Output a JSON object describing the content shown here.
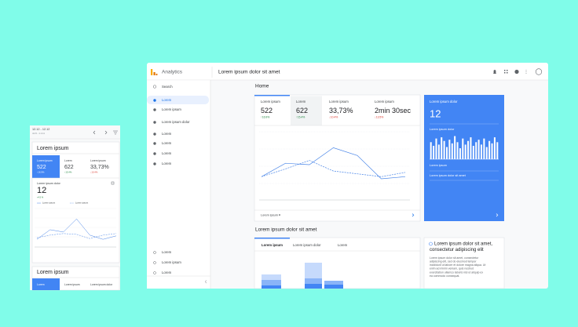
{
  "mobile": {
    "date_range": "12.12 - 12.12",
    "date_sub": "Jul 6 - 1.1.11",
    "title": "Lorem ipsum",
    "metrics": [
      {
        "label": "Lorem ipsum",
        "value": "522",
        "change": "↑16.9%"
      },
      {
        "label": "Lorem",
        "value": "622",
        "change": "↑15.4%"
      },
      {
        "label": "Lorem ipsum",
        "value": "33,73%",
        "change": "↓10.4%"
      }
    ],
    "stat_label": "Lorem ipsum dolor",
    "stat_value": "12",
    "stat_change": "+4.5 %",
    "legend": [
      "Lorem ipsum",
      "Lorem ipsum"
    ],
    "chart": {
      "type": "line",
      "ylim": [
        0,
        100
      ],
      "series": [
        {
          "color": "#4a86e8",
          "style": "solid",
          "values": [
            20,
            45,
            39,
            73,
            31,
            20,
            29
          ]
        },
        {
          "color": "#4a86e8",
          "style": "dashed",
          "values": [
            24,
            31,
            35,
            33,
            22,
            31,
            35
          ]
        }
      ]
    },
    "card2_title": "Lorem ipsum",
    "tabs": [
      "Lorem",
      "Lorem ipsum",
      "Lorem ipsum dolor"
    ]
  },
  "desktop": {
    "app_name": "Analytics",
    "page_title": "Lorem ipsum dolor sit amet",
    "search": "Search",
    "nav": [
      "Lorem",
      "Lorem ipsum",
      "Lorem ipsum dolor",
      "Lorem",
      "Lorem",
      "Lorem",
      "Lorem"
    ],
    "nav_bottom": [
      "Lorem",
      "Lorem ipsum",
      "Lorem"
    ],
    "home": "Home",
    "metrics": [
      {
        "label": "Lorem ipsum",
        "value": "522",
        "change": "↑16.9%"
      },
      {
        "label": "Lorem",
        "value": "622",
        "change": "↑15.4%"
      },
      {
        "label": "Lorem ipsum",
        "value": "33,73%",
        "change": "↓10.4%"
      },
      {
        "label": "Lorem ipsum",
        "value": "2min 30sec",
        "change": "↓13.5%"
      }
    ],
    "chart": {
      "type": "line",
      "ylim": [
        0,
        100
      ],
      "series": [
        {
          "color": "#4a86e8",
          "style": "solid",
          "values": [
            33,
            52,
            50,
            74,
            63,
            30,
            33
          ]
        },
        {
          "color": "#4a86e8",
          "style": "dashed",
          "values": [
            33,
            44,
            56,
            41,
            37,
            33,
            39
          ]
        }
      ]
    },
    "chart_footer": "Lorem ipsum ▾",
    "side_card": {
      "label": "Lorem ipsum dolor",
      "value": "12",
      "sub_label": "Lorem ipsum dolor",
      "bars": {
        "type": "bar",
        "ylim": [
          0,
          100
        ],
        "color": "#ffffff",
        "values": [
          70,
          55,
          85,
          60,
          90,
          75,
          50,
          80,
          65,
          95,
          70,
          45,
          85,
          60,
          75,
          90,
          55,
          70,
          80,
          60,
          85,
          50,
          75,
          65,
          90,
          70
        ]
      },
      "rows": [
        "Lorem ipsum",
        "Lorem ipsum dolor sit amet"
      ]
    },
    "section_title": "Lorem ipsum dolor sit amet",
    "tabs": [
      "Lorem ipsum",
      "Lorem ipsum dolor",
      "Lorem"
    ],
    "stacked": {
      "type": "bar",
      "stacked": true,
      "ylim": [
        0,
        48
      ],
      "series": [
        {
          "color": "#4285f4",
          "values": [
            4,
            6,
            5
          ]
        },
        {
          "color": "#8ab4f8",
          "values": [
            7,
            7,
            5
          ]
        },
        {
          "color": "#c6dafc",
          "values": [
            7,
            20,
            0
          ]
        }
      ]
    },
    "info_title": [
      "Lorem ipsum dolor sit amet,",
      "consectetur adipiscing elit"
    ],
    "info_body": [
      "Lorem ipsum dolor sit amet, consectetur",
      "adipiscing elit, sed do eiusmod tempor",
      "incididunt ut labore et dolore magna aliqua. Ut",
      "enim ad minim veniam, quis nostrud",
      "exercitation ullamco laboris nisi ut aliquip ex",
      "ea commodo consequat."
    ]
  }
}
